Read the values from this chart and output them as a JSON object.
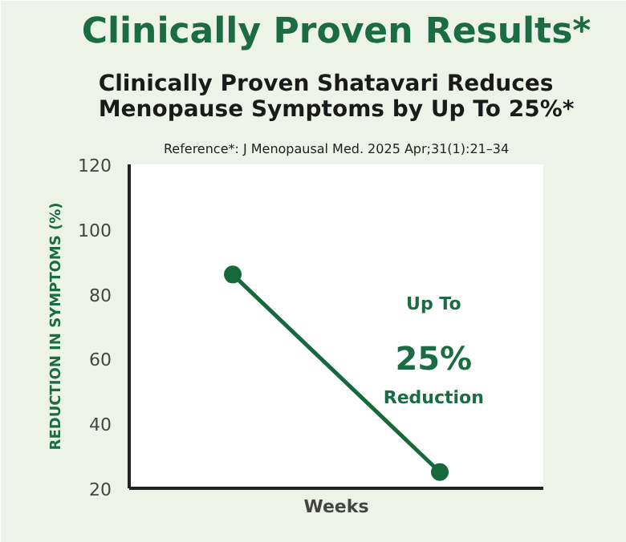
{
  "chart_data": {
    "type": "line",
    "title": "Clinically Proven Results*",
    "subtitle": "Clinically Proven Shatavari Reduces Menopause Symptoms by Up To 25%*",
    "xlabel": "Weeks",
    "ylabel": "REDUCTION IN SYMPTOMS (%)",
    "annotations": [
      "Reference*: J Menopausal Med. 2025 Apr;31(1):21–34",
      "Up To",
      "25%",
      "Reduction"
    ],
    "categories": [
      null,
      null
    ],
    "series": [
      {
        "color": "#16693a",
        "values": [
          86,
          25
        ]
      }
    ],
    "ylim": [
      20,
      120
    ],
    "yticks": [
      20,
      40,
      60,
      80,
      100,
      120
    ],
    "grid": false,
    "marker": "circle",
    "line_style": "solid"
  }
}
